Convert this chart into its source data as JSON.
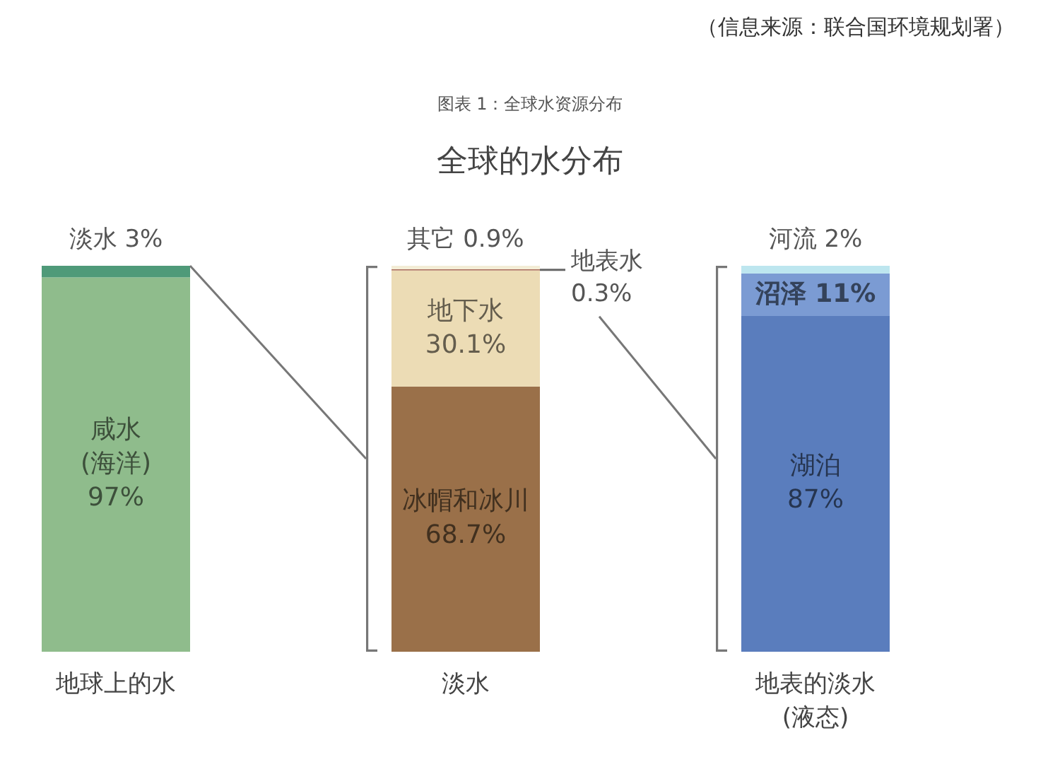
{
  "chart_data": {
    "type": "bar",
    "stacked": true,
    "title": "全球的水分布",
    "annotations": [
      "（信息来源：联合国环境规划署）",
      "图表 1：全球水资源分布"
    ],
    "categories": [
      "地球上的水",
      "淡水",
      "地表的淡水 (液态)"
    ],
    "ylim": [
      0,
      100
    ],
    "tick_labels": "x",
    "series": [
      {
        "name": "咸水 (海洋)",
        "color": "#8fbc8c",
        "values": [
          97,
          null,
          null
        ],
        "value_labels": [
          "97%",
          null,
          null
        ]
      },
      {
        "name": "淡水",
        "color": "#4f9a79",
        "values": [
          3,
          null,
          null
        ],
        "value_labels": [
          "3%",
          null,
          null
        ]
      },
      {
        "name": "冰帽和冰川",
        "color": "#9a7049",
        "values": [
          null,
          68.7,
          null
        ],
        "value_labels": [
          null,
          "68.7%",
          null
        ]
      },
      {
        "name": "地下水",
        "color": "#ecdcb5",
        "values": [
          null,
          30.1,
          null
        ],
        "value_labels": [
          null,
          "30.1%",
          null
        ]
      },
      {
        "name": "地表水",
        "color": "#a86a58",
        "values": [
          null,
          0.3,
          null
        ],
        "value_labels": [
          null,
          "0.3%",
          null
        ]
      },
      {
        "name": "其它",
        "color": "#f3edd6",
        "values": [
          null,
          0.9,
          null
        ],
        "value_labels": [
          null,
          "0.9%",
          null
        ]
      },
      {
        "name": "湖泊",
        "color": "#5a7dbd",
        "values": [
          null,
          null,
          87
        ],
        "value_labels": [
          null,
          null,
          "87%"
        ]
      },
      {
        "name": "沼泽",
        "color": "#7b9bd3",
        "values": [
          null,
          null,
          11
        ],
        "value_labels": [
          null,
          null,
          "11%"
        ]
      },
      {
        "name": "河流",
        "color": "#bde6ef",
        "values": [
          null,
          null,
          2
        ],
        "value_labels": [
          null,
          null,
          "2%"
        ]
      }
    ]
  }
}
